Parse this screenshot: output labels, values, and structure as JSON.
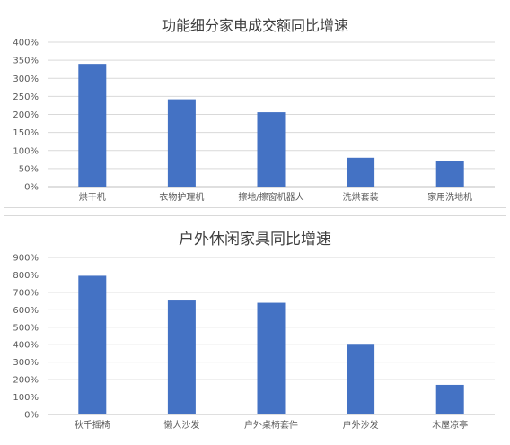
{
  "chart_data": [
    {
      "type": "bar",
      "title": "功能细分家电成交额同比增速",
      "categories": [
        "烘干机",
        "衣物护理机",
        "擦地/擦窗机器人",
        "洗烘套装",
        "家用洗地机"
      ],
      "values": [
        340,
        242,
        206,
        80,
        72
      ],
      "ylim": [
        0,
        400
      ],
      "yticks": [
        "0%",
        "50%",
        "100%",
        "150%",
        "200%",
        "250%",
        "300%",
        "350%",
        "400%"
      ],
      "grid": true,
      "legend": "none",
      "bar_color": "#4472C4"
    },
    {
      "type": "bar",
      "title": "户外休闲家具同比增速",
      "categories": [
        "秋千摇椅",
        "懒人沙发",
        "户外桌椅套件",
        "户外沙发",
        "木屋凉亭"
      ],
      "values": [
        795,
        658,
        640,
        405,
        170
      ],
      "ylim": [
        0,
        900
      ],
      "yticks": [
        "0%",
        "100%",
        "200%",
        "300%",
        "400%",
        "500%",
        "600%",
        "700%",
        "800%",
        "900%"
      ],
      "grid": true,
      "legend": "none",
      "bar_color": "#4472C4"
    }
  ]
}
